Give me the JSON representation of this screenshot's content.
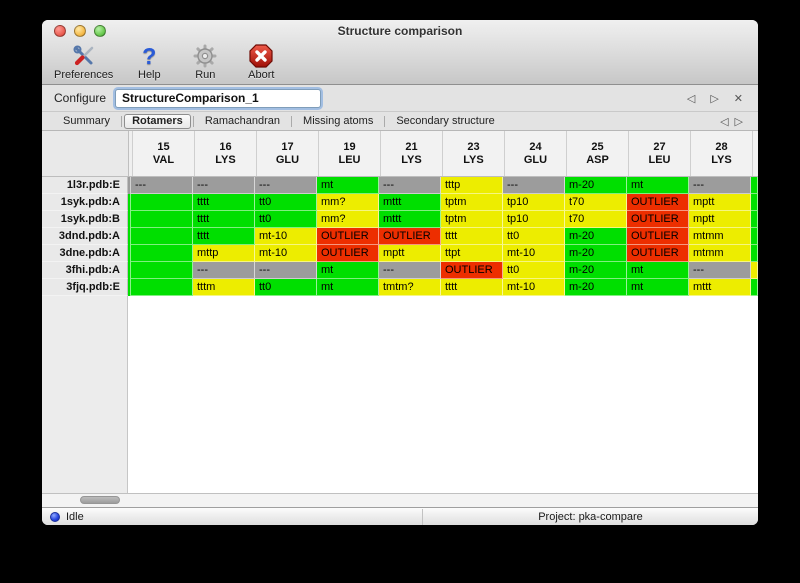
{
  "window": {
    "title": "Structure comparison"
  },
  "toolbar": {
    "items": [
      {
        "label": "Preferences",
        "icon": "tools-icon"
      },
      {
        "label": "Help",
        "icon": "help-icon"
      },
      {
        "label": "Run",
        "icon": "gear-icon"
      },
      {
        "label": "Abort",
        "icon": "abort-icon"
      }
    ],
    "help_glyph": "?"
  },
  "configure": {
    "label": "Configure",
    "value": "StructureComparison_1"
  },
  "nav": {
    "back_glyph": "◁",
    "forward_glyph": "▷",
    "close_glyph": "✕"
  },
  "tabs": {
    "active": "Rotamers",
    "items": [
      "Summary",
      "Rotamers",
      "Ramachandran",
      "Missing atoms",
      "Secondary structure"
    ]
  },
  "colors": {
    "green": "#00df00",
    "yellow": "#eded00",
    "red": "#ed2e00",
    "gray": "#9c9c9c"
  },
  "table": {
    "columns": [
      {
        "num": "15",
        "res": "VAL"
      },
      {
        "num": "16",
        "res": "LYS"
      },
      {
        "num": "17",
        "res": "GLU"
      },
      {
        "num": "19",
        "res": "LEU"
      },
      {
        "num": "21",
        "res": "LYS"
      },
      {
        "num": "23",
        "res": "LYS"
      },
      {
        "num": "24",
        "res": "GLU"
      },
      {
        "num": "25",
        "res": "ASP"
      },
      {
        "num": "27",
        "res": "LEU"
      },
      {
        "num": "28",
        "res": "LYS"
      }
    ],
    "rows": [
      {
        "label": "1l3r.pdb:E",
        "edge": "green",
        "cells": [
          {
            "t": "---",
            "c": "gray"
          },
          {
            "t": "---",
            "c": "gray"
          },
          {
            "t": "---",
            "c": "gray"
          },
          {
            "t": "mt",
            "c": "green"
          },
          {
            "t": "---",
            "c": "gray"
          },
          {
            "t": "tttp",
            "c": "yellow"
          },
          {
            "t": "---",
            "c": "gray"
          },
          {
            "t": "m-20",
            "c": "green"
          },
          {
            "t": "mt",
            "c": "green"
          },
          {
            "t": "---",
            "c": "gray"
          }
        ]
      },
      {
        "label": "1syk.pdb:A",
        "edge": "green",
        "cells": [
          {
            "t": "",
            "c": "green"
          },
          {
            "t": "tttt",
            "c": "green"
          },
          {
            "t": "tt0",
            "c": "green"
          },
          {
            "t": "mm?",
            "c": "yellow"
          },
          {
            "t": "mttt",
            "c": "green"
          },
          {
            "t": "tptm",
            "c": "yellow"
          },
          {
            "t": "tp10",
            "c": "yellow"
          },
          {
            "t": "t70",
            "c": "yellow"
          },
          {
            "t": "OUTLIER",
            "c": "red"
          },
          {
            "t": "mptt",
            "c": "yellow"
          }
        ]
      },
      {
        "label": "1syk.pdb:B",
        "edge": "green",
        "cells": [
          {
            "t": "",
            "c": "green"
          },
          {
            "t": "tttt",
            "c": "green"
          },
          {
            "t": "tt0",
            "c": "green"
          },
          {
            "t": "mm?",
            "c": "yellow"
          },
          {
            "t": "mttt",
            "c": "green"
          },
          {
            "t": "tptm",
            "c": "yellow"
          },
          {
            "t": "tp10",
            "c": "yellow"
          },
          {
            "t": "t70",
            "c": "yellow"
          },
          {
            "t": "OUTLIER",
            "c": "red"
          },
          {
            "t": "mptt",
            "c": "yellow"
          }
        ]
      },
      {
        "label": "3dnd.pdb:A",
        "edge": "green",
        "cells": [
          {
            "t": "",
            "c": "green"
          },
          {
            "t": "tttt",
            "c": "green"
          },
          {
            "t": "mt-10",
            "c": "yellow"
          },
          {
            "t": "OUTLIER",
            "c": "red"
          },
          {
            "t": "OUTLIER",
            "c": "red"
          },
          {
            "t": "tttt",
            "c": "yellow"
          },
          {
            "t": "tt0",
            "c": "yellow"
          },
          {
            "t": "m-20",
            "c": "green"
          },
          {
            "t": "OUTLIER",
            "c": "red"
          },
          {
            "t": "mtmm",
            "c": "yellow"
          }
        ]
      },
      {
        "label": "3dne.pdb:A",
        "edge": "green",
        "cells": [
          {
            "t": "",
            "c": "green"
          },
          {
            "t": "mttp",
            "c": "yellow"
          },
          {
            "t": "mt-10",
            "c": "yellow"
          },
          {
            "t": "OUTLIER",
            "c": "red"
          },
          {
            "t": "mptt",
            "c": "yellow"
          },
          {
            "t": "ttpt",
            "c": "yellow"
          },
          {
            "t": "mt-10",
            "c": "yellow"
          },
          {
            "t": "m-20",
            "c": "green"
          },
          {
            "t": "OUTLIER",
            "c": "red"
          },
          {
            "t": "mtmm",
            "c": "yellow"
          }
        ]
      },
      {
        "label": "3fhi.pdb:A",
        "edge": "yellow",
        "cells": [
          {
            "t": "",
            "c": "green"
          },
          {
            "t": "---",
            "c": "gray"
          },
          {
            "t": "---",
            "c": "gray"
          },
          {
            "t": "mt",
            "c": "green"
          },
          {
            "t": "---",
            "c": "gray"
          },
          {
            "t": "OUTLIER",
            "c": "red"
          },
          {
            "t": "tt0",
            "c": "yellow"
          },
          {
            "t": "m-20",
            "c": "green"
          },
          {
            "t": "mt",
            "c": "green"
          },
          {
            "t": "---",
            "c": "gray"
          }
        ]
      },
      {
        "label": "3fjq.pdb:E",
        "edge": "green",
        "cells": [
          {
            "t": "",
            "c": "green"
          },
          {
            "t": "tttm",
            "c": "yellow"
          },
          {
            "t": "tt0",
            "c": "green"
          },
          {
            "t": "mt",
            "c": "green"
          },
          {
            "t": "tmtm?",
            "c": "yellow"
          },
          {
            "t": "tttt",
            "c": "yellow"
          },
          {
            "t": "mt-10",
            "c": "yellow"
          },
          {
            "t": "m-20",
            "c": "green"
          },
          {
            "t": "mt",
            "c": "green"
          },
          {
            "t": "mttt",
            "c": "yellow"
          }
        ]
      }
    ]
  },
  "statusbar": {
    "status": "Idle",
    "project": "Project: pka-compare"
  }
}
